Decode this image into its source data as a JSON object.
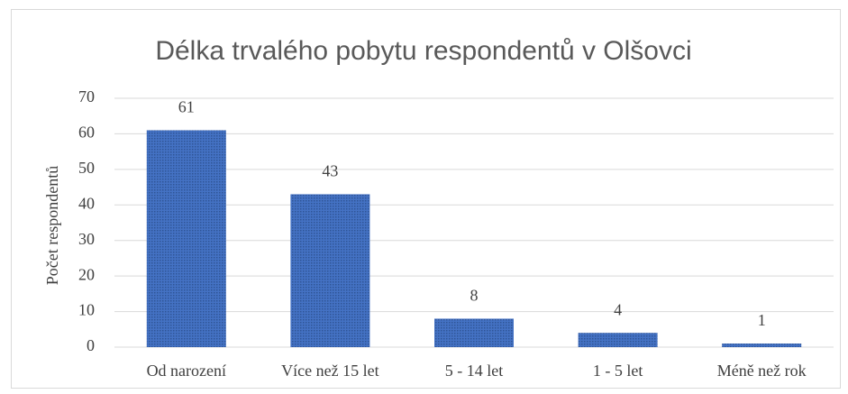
{
  "chart_data": {
    "type": "bar",
    "title": "Délka trvalého pobytu respondentů v Olšovci",
    "y_label": "Počet respondentů",
    "categories": [
      "Od narození",
      "Více než 15 let",
      "5 - 14 let",
      "1 - 5 let",
      "Méně než rok"
    ],
    "values": [
      61,
      43,
      8,
      4,
      1
    ],
    "color": "#4472c4",
    "ylim": [
      0,
      70
    ],
    "yticks": [
      0,
      10,
      20,
      30,
      40,
      50,
      60,
      70
    ],
    "grid": true
  }
}
